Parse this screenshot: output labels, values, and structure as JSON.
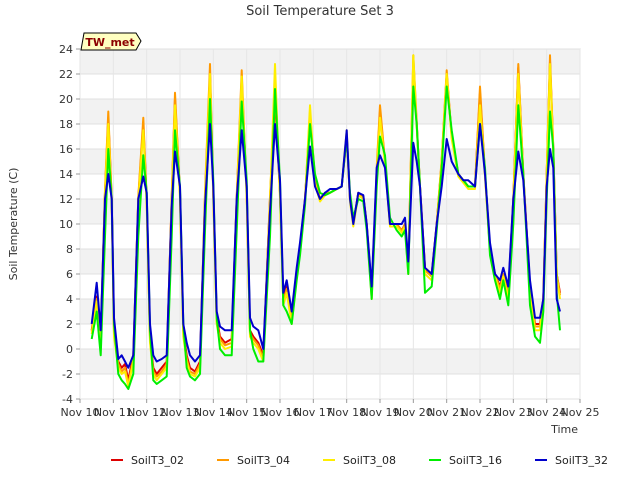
{
  "chart_data": {
    "type": "line",
    "title": "Soil Temperature Set 3",
    "xlabel": "Time",
    "ylabel": "Soil Temperature (C)",
    "badge": "TW_met",
    "ylim": [
      -4,
      24
    ],
    "yticks": [
      -4,
      -2,
      0,
      2,
      4,
      6,
      8,
      10,
      12,
      14,
      16,
      18,
      20,
      22,
      24
    ],
    "xlim": [
      10,
      25
    ],
    "xticks": [
      {
        "v": 10,
        "label": "Nov 10"
      },
      {
        "v": 11,
        "label": "Nov 11"
      },
      {
        "v": 12,
        "label": "Nov 12"
      },
      {
        "v": 13,
        "label": "Nov 13"
      },
      {
        "v": 14,
        "label": "Nov 14"
      },
      {
        "v": 15,
        "label": "Nov 15"
      },
      {
        "v": 16,
        "label": "Nov 16"
      },
      {
        "v": 17,
        "label": "Nov 17"
      },
      {
        "v": 18,
        "label": "Nov 18"
      },
      {
        "v": 19,
        "label": "Nov 19"
      },
      {
        "v": 20,
        "label": "Nov 20"
      },
      {
        "v": 21,
        "label": "Nov 21"
      },
      {
        "v": 22,
        "label": "Nov 22"
      },
      {
        "v": 23,
        "label": "Nov 23"
      },
      {
        "v": 24,
        "label": "Nov 24"
      },
      {
        "v": 25,
        "label": "Nov 25"
      }
    ],
    "grid": true,
    "legend_position": "bottom",
    "series": [
      {
        "name": "SoilT3_02",
        "color": "#dd0000",
        "x": [
          10.35,
          10.5,
          10.62,
          10.75,
          10.85,
          10.95,
          11.02,
          11.15,
          11.25,
          11.35,
          11.45,
          11.6,
          11.75,
          11.9,
          12.0,
          12.1,
          12.2,
          12.3,
          12.45,
          12.6,
          12.75,
          12.85,
          13.0,
          13.1,
          13.2,
          13.3,
          13.45,
          13.6,
          13.75,
          13.9,
          14.0,
          14.1,
          14.2,
          14.35,
          14.55,
          14.7,
          14.85,
          15.0,
          15.1,
          15.2,
          15.35,
          15.5,
          15.7,
          15.85,
          16.0,
          16.1,
          16.2,
          16.35,
          16.5,
          16.6,
          16.75,
          16.9,
          17.05,
          17.2,
          17.35,
          17.5,
          17.7,
          17.85,
          18.0,
          18.1,
          18.2,
          18.35,
          18.5,
          18.6,
          18.75,
          18.9,
          19.0,
          19.15,
          19.3,
          19.5,
          19.65,
          19.75,
          19.85,
          20.0,
          20.1,
          20.2,
          20.35,
          20.55,
          20.7,
          20.85,
          21.0,
          21.15,
          21.35,
          21.5,
          21.65,
          21.85,
          22.0,
          22.15,
          22.3,
          22.45,
          22.6,
          22.7,
          22.85,
          23.0,
          23.15,
          23.3,
          23.5,
          23.65,
          23.8,
          23.9,
          24.0,
          24.1,
          24.2,
          24.3,
          24.4
        ],
        "y": [
          1.5,
          4.2,
          1.0,
          12.5,
          18.5,
          12.0,
          1.5,
          -1.0,
          -1.5,
          -1.2,
          -2.5,
          -0.5,
          12.0,
          18.0,
          12.0,
          1.0,
          -1.5,
          -2.0,
          -1.5,
          -1.0,
          12.0,
          20.0,
          12.5,
          1.5,
          -0.5,
          -1.5,
          -1.8,
          -1.0,
          12.0,
          22.0,
          12.5,
          2.5,
          1.0,
          0.5,
          0.8,
          12.0,
          21.5,
          12.5,
          1.5,
          1.0,
          0.5,
          -0.5,
          12.0,
          20.0,
          12.5,
          4.0,
          5.0,
          2.5,
          6.0,
          8.0,
          12.0,
          18.5,
          13.5,
          12.0,
          12.5,
          12.5,
          12.8,
          13.0,
          17.0,
          12.0,
          10.0,
          12.5,
          12.2,
          10.0,
          4.5,
          14.0,
          19.0,
          15.0,
          10.0,
          10.0,
          9.5,
          10.0,
          6.5,
          22.5,
          18.0,
          13.0,
          6.5,
          6.0,
          10.0,
          15.0,
          22.0,
          17.0,
          14.0,
          13.5,
          13.0,
          13.0,
          20.5,
          14.0,
          8.0,
          6.0,
          5.0,
          6.0,
          4.5,
          12.0,
          22.5,
          14.0,
          5.0,
          2.0,
          2.0,
          4.0,
          14.0,
          23.0,
          16.0,
          6.0,
          4.5
        ]
      },
      {
        "name": "SoilT3_04",
        "color": "#ff9900",
        "x": [
          10.35,
          10.5,
          10.62,
          10.75,
          10.85,
          10.95,
          11.02,
          11.15,
          11.25,
          11.35,
          11.45,
          11.6,
          11.75,
          11.9,
          12.0,
          12.1,
          12.2,
          12.3,
          12.45,
          12.6,
          12.75,
          12.85,
          13.0,
          13.1,
          13.2,
          13.3,
          13.45,
          13.6,
          13.75,
          13.9,
          14.0,
          14.1,
          14.2,
          14.35,
          14.55,
          14.7,
          14.85,
          15.0,
          15.1,
          15.2,
          15.35,
          15.5,
          15.7,
          15.85,
          16.0,
          16.1,
          16.2,
          16.35,
          16.5,
          16.6,
          16.75,
          16.9,
          17.05,
          17.2,
          17.35,
          17.5,
          17.7,
          17.85,
          18.0,
          18.1,
          18.2,
          18.35,
          18.5,
          18.6,
          18.75,
          18.9,
          19.0,
          19.15,
          19.3,
          19.5,
          19.65,
          19.75,
          19.85,
          20.0,
          20.1,
          20.2,
          20.35,
          20.55,
          20.7,
          20.85,
          21.0,
          21.15,
          21.35,
          21.5,
          21.65,
          21.85,
          22.0,
          22.15,
          22.3,
          22.45,
          22.6,
          22.7,
          22.85,
          23.0,
          23.15,
          23.3,
          23.5,
          23.65,
          23.8,
          23.9,
          24.0,
          24.1,
          24.2,
          24.3,
          24.4
        ],
        "y": [
          1.4,
          4.0,
          0.8,
          12.8,
          19.0,
          12.0,
          1.2,
          -1.2,
          -1.8,
          -1.5,
          -2.8,
          -0.8,
          12.2,
          18.5,
          12.0,
          0.8,
          -1.8,
          -2.2,
          -1.8,
          -1.2,
          12.2,
          20.5,
          12.5,
          1.2,
          -0.8,
          -1.8,
          -2.0,
          -1.2,
          12.5,
          22.8,
          12.5,
          2.2,
          0.8,
          0.3,
          0.5,
          12.2,
          22.3,
          12.5,
          1.2,
          0.8,
          0.3,
          -0.8,
          12.2,
          20.5,
          12.5,
          3.8,
          4.8,
          2.3,
          6.0,
          8.0,
          12.0,
          19.0,
          13.5,
          12.0,
          12.5,
          12.5,
          12.8,
          13.0,
          17.2,
          12.0,
          10.0,
          12.5,
          12.2,
          10.0,
          4.3,
          14.5,
          19.5,
          15.0,
          10.0,
          10.0,
          9.5,
          10.0,
          6.3,
          23.5,
          18.2,
          13.0,
          6.3,
          5.8,
          10.0,
          15.2,
          22.3,
          17.0,
          14.0,
          13.5,
          13.0,
          13.0,
          21.0,
          14.0,
          8.0,
          6.0,
          4.8,
          6.0,
          4.3,
          12.0,
          22.8,
          14.0,
          4.8,
          1.8,
          1.8,
          4.0,
          14.0,
          23.5,
          16.0,
          6.0,
          4.3
        ]
      },
      {
        "name": "SoilT3_08",
        "color": "#ffee00",
        "x": [
          10.35,
          10.5,
          10.62,
          10.75,
          10.85,
          10.95,
          11.02,
          11.15,
          11.25,
          11.35,
          11.45,
          11.6,
          11.75,
          11.9,
          12.0,
          12.1,
          12.2,
          12.3,
          12.45,
          12.6,
          12.75,
          12.85,
          13.0,
          13.1,
          13.2,
          13.3,
          13.45,
          13.6,
          13.75,
          13.9,
          14.0,
          14.1,
          14.2,
          14.35,
          14.55,
          14.7,
          14.85,
          15.0,
          15.1,
          15.2,
          15.35,
          15.5,
          15.7,
          15.85,
          16.0,
          16.1,
          16.2,
          16.35,
          16.5,
          16.6,
          16.75,
          16.9,
          17.05,
          17.2,
          17.35,
          17.5,
          17.7,
          17.85,
          18.0,
          18.1,
          18.2,
          18.35,
          18.5,
          18.6,
          18.75,
          18.9,
          19.0,
          19.15,
          19.3,
          19.5,
          19.65,
          19.75,
          19.85,
          20.0,
          20.1,
          20.2,
          20.35,
          20.55,
          20.7,
          20.85,
          21.0,
          21.15,
          21.35,
          21.5,
          21.65,
          21.85,
          22.0,
          22.15,
          22.3,
          22.45,
          22.6,
          22.7,
          22.85,
          23.0,
          23.15,
          23.3,
          23.5,
          23.65,
          23.8,
          23.9,
          24.0,
          24.1,
          24.2,
          24.3,
          24.4
        ],
        "y": [
          1.2,
          3.8,
          0.5,
          12.5,
          18.0,
          11.5,
          1.0,
          -1.5,
          -2.0,
          -1.8,
          -3.0,
          -1.0,
          11.8,
          17.5,
          11.5,
          0.5,
          -2.0,
          -2.5,
          -2.0,
          -1.5,
          11.8,
          19.5,
          12.0,
          1.0,
          -1.0,
          -2.0,
          -2.2,
          -1.5,
          12.0,
          22.0,
          12.0,
          2.0,
          0.5,
          0.0,
          0.2,
          11.8,
          21.8,
          12.0,
          1.0,
          0.5,
          0.0,
          -1.0,
          11.8,
          22.8,
          12.0,
          3.5,
          4.5,
          2.0,
          5.8,
          7.8,
          11.8,
          19.5,
          13.2,
          11.8,
          12.3,
          12.5,
          12.8,
          13.0,
          17.5,
          11.8,
          9.8,
          12.3,
          12.0,
          9.8,
          4.0,
          14.0,
          18.5,
          14.8,
          9.8,
          9.8,
          9.3,
          9.8,
          6.0,
          23.5,
          17.8,
          12.8,
          6.0,
          5.5,
          9.8,
          15.0,
          22.0,
          16.8,
          13.8,
          13.3,
          12.8,
          12.8,
          19.5,
          13.8,
          7.8,
          5.8,
          4.5,
          5.8,
          4.0,
          11.8,
          22.0,
          13.8,
          4.5,
          1.5,
          1.5,
          3.8,
          13.8,
          22.8,
          15.8,
          5.8,
          4.0
        ]
      },
      {
        "name": "SoilT3_16",
        "color": "#00ee00",
        "x": [
          10.35,
          10.5,
          10.62,
          10.75,
          10.85,
          10.95,
          11.02,
          11.15,
          11.25,
          11.35,
          11.45,
          11.6,
          11.75,
          11.9,
          12.0,
          12.1,
          12.2,
          12.3,
          12.45,
          12.6,
          12.75,
          12.85,
          13.0,
          13.1,
          13.2,
          13.3,
          13.45,
          13.6,
          13.75,
          13.9,
          14.0,
          14.1,
          14.2,
          14.35,
          14.55,
          14.7,
          14.85,
          15.0,
          15.1,
          15.2,
          15.35,
          15.5,
          15.7,
          15.85,
          16.0,
          16.1,
          16.2,
          16.35,
          16.5,
          16.6,
          16.75,
          16.9,
          17.05,
          17.2,
          17.35,
          17.5,
          17.7,
          17.85,
          18.0,
          18.1,
          18.2,
          18.35,
          18.5,
          18.6,
          18.75,
          18.9,
          19.0,
          19.15,
          19.3,
          19.5,
          19.65,
          19.75,
          19.85,
          20.0,
          20.1,
          20.2,
          20.35,
          20.55,
          20.7,
          20.85,
          21.0,
          21.15,
          21.35,
          21.5,
          21.65,
          21.85,
          22.0,
          22.15,
          22.3,
          22.45,
          22.6,
          22.7,
          22.85,
          23.0,
          23.15,
          23.3,
          23.5,
          23.65,
          23.8,
          23.9,
          24.0,
          24.1,
          24.2,
          24.3,
          24.4
        ],
        "y": [
          0.8,
          3.0,
          -0.5,
          9.0,
          16.0,
          12.0,
          2.0,
          -2.0,
          -2.5,
          -2.8,
          -3.2,
          -2.0,
          9.0,
          15.5,
          12.5,
          1.5,
          -2.5,
          -2.8,
          -2.5,
          -2.2,
          9.0,
          17.5,
          13.0,
          2.0,
          -1.5,
          -2.2,
          -2.5,
          -2.0,
          9.5,
          20.0,
          13.5,
          2.5,
          0.0,
          -0.5,
          -0.5,
          9.5,
          19.8,
          13.5,
          1.5,
          0.0,
          -1.0,
          -1.0,
          9.0,
          20.8,
          13.5,
          3.5,
          3.0,
          2.0,
          5.5,
          7.5,
          11.5,
          18.0,
          14.0,
          12.5,
          12.3,
          12.5,
          12.8,
          13.0,
          17.0,
          12.5,
          10.5,
          12.0,
          11.8,
          9.5,
          4.0,
          13.0,
          17.0,
          15.5,
          10.5,
          9.5,
          9.0,
          9.5,
          6.0,
          21.0,
          18.0,
          13.0,
          4.5,
          5.0,
          9.5,
          14.5,
          21.0,
          17.5,
          14.0,
          13.5,
          13.0,
          13.0,
          18.0,
          14.5,
          7.5,
          5.5,
          4.0,
          5.5,
          3.5,
          10.0,
          19.5,
          14.0,
          3.5,
          1.0,
          0.5,
          3.0,
          12.0,
          19.0,
          16.0,
          4.5,
          1.5
        ]
      },
      {
        "name": "SoilT3_32",
        "color": "#0000cc",
        "x": [
          10.35,
          10.5,
          10.62,
          10.75,
          10.85,
          10.95,
          11.02,
          11.15,
          11.25,
          11.35,
          11.45,
          11.6,
          11.75,
          11.9,
          12.0,
          12.1,
          12.2,
          12.3,
          12.45,
          12.6,
          12.75,
          12.85,
          13.0,
          13.1,
          13.2,
          13.3,
          13.45,
          13.6,
          13.75,
          13.9,
          14.0,
          14.1,
          14.2,
          14.35,
          14.55,
          14.7,
          14.85,
          15.0,
          15.1,
          15.2,
          15.35,
          15.5,
          15.7,
          15.85,
          16.0,
          16.1,
          16.2,
          16.35,
          16.5,
          16.6,
          16.75,
          16.9,
          17.05,
          17.2,
          17.35,
          17.5,
          17.7,
          17.85,
          18.0,
          18.1,
          18.2,
          18.35,
          18.5,
          18.6,
          18.75,
          18.9,
          19.0,
          19.15,
          19.3,
          19.5,
          19.65,
          19.75,
          19.85,
          20.0,
          20.1,
          20.2,
          20.35,
          20.55,
          20.7,
          20.85,
          21.0,
          21.15,
          21.35,
          21.5,
          21.65,
          21.85,
          22.0,
          22.15,
          22.3,
          22.45,
          22.6,
          22.7,
          22.85,
          23.0,
          23.15,
          23.3,
          23.5,
          23.65,
          23.8,
          23.9,
          24.0,
          24.1,
          24.2,
          24.3,
          24.4
        ],
        "y": [
          2.0,
          5.3,
          1.5,
          12.0,
          14.0,
          12.0,
          2.5,
          -0.8,
          -0.5,
          -1.0,
          -1.5,
          -0.5,
          12.0,
          13.8,
          12.5,
          2.0,
          -0.5,
          -1.0,
          -0.8,
          -0.5,
          11.5,
          15.8,
          13.0,
          2.0,
          0.5,
          -0.5,
          -1.0,
          -0.5,
          11.5,
          18.0,
          13.0,
          3.0,
          1.8,
          1.5,
          1.5,
          12.0,
          17.5,
          13.0,
          2.5,
          1.8,
          1.5,
          0.0,
          11.0,
          18.0,
          13.5,
          4.5,
          5.5,
          3.0,
          6.5,
          8.5,
          12.0,
          16.2,
          13.0,
          12.0,
          12.5,
          12.8,
          12.8,
          13.0,
          17.5,
          12.0,
          10.0,
          12.5,
          12.3,
          10.0,
          5.0,
          14.5,
          15.5,
          14.5,
          10.0,
          10.0,
          10.0,
          10.5,
          7.0,
          16.5,
          15.0,
          13.0,
          6.5,
          6.0,
          10.0,
          13.0,
          16.8,
          15.0,
          14.0,
          13.5,
          13.5,
          13.0,
          18.0,
          14.0,
          8.5,
          6.0,
          5.5,
          6.5,
          5.0,
          12.0,
          15.8,
          13.5,
          5.5,
          2.5,
          2.5,
          4.0,
          13.0,
          16.0,
          14.5,
          4.0,
          3.0
        ]
      }
    ]
  }
}
